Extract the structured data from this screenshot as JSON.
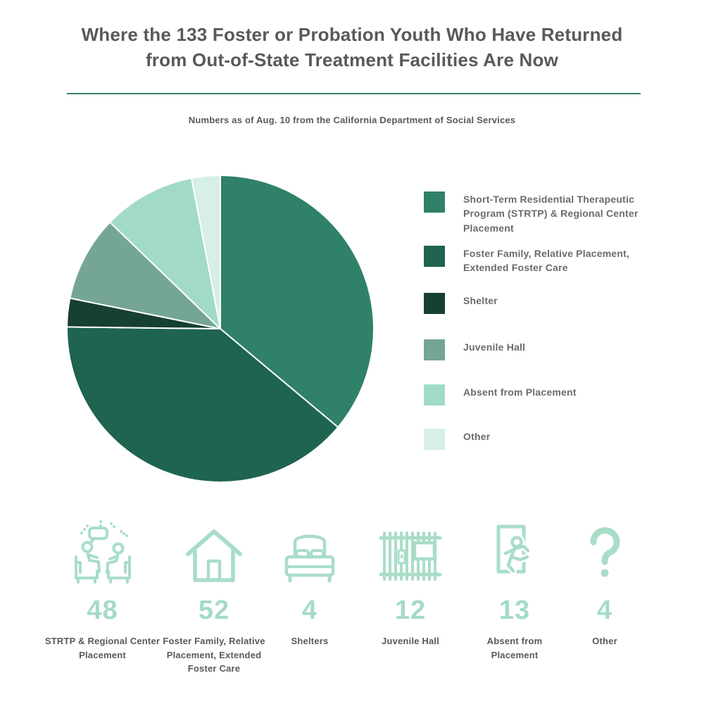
{
  "header": {
    "title": "Where the 133 Foster or Probation Youth Who Have Returned from Out-of-State Treatment Facilities Are Now",
    "subtitle": "Numbers as of Aug. 10 from the California Department of Social Services"
  },
  "chart_data": {
    "type": "pie",
    "title": "Where the 133 Foster or Probation Youth Who Have Returned from Out-of-State Treatment Facilities Are Now",
    "categories": [
      "Short-Term Residential Therapeutic Program (STRTP) & Regional Center Placement",
      "Foster Family, Relative Placement, Extended Foster Care",
      "Shelter",
      "Juvenile Hall",
      "Absent from Placement",
      "Other"
    ],
    "values": [
      48,
      52,
      4,
      12,
      13,
      4
    ],
    "total": 133,
    "colors": [
      "#2f8169",
      "#1f6351",
      "#16402f",
      "#75a597",
      "#a1dbc7",
      "#d7efe6"
    ],
    "start_angle_deg": 0,
    "direction": "clockwise",
    "legend_position": "right",
    "grid": false
  },
  "legend": {
    "items": [
      {
        "label": "Short-Term Residential Therapeutic Program (STRTP) & Regional Center Placement",
        "color": "#2f8169"
      },
      {
        "label": "Foster Family, Relative Placement, Extended Foster Care",
        "color": "#1f6351"
      },
      {
        "label": "Shelter",
        "color": "#16402f"
      },
      {
        "label": "Juvenile Hall",
        "color": "#75a597"
      },
      {
        "label": "Absent from Placement",
        "color": "#a1dbc7"
      },
      {
        "label": "Other",
        "color": "#d7efe6"
      }
    ]
  },
  "stats": {
    "items": [
      {
        "icon": "counseling-session-icon",
        "value": "48",
        "label": "STRTP & Regional Center Placement"
      },
      {
        "icon": "house-icon",
        "value": "52",
        "label": "Foster Family, Relative Placement, Extended Foster Care"
      },
      {
        "icon": "bed-icon",
        "value": "4",
        "label": "Shelters"
      },
      {
        "icon": "jail-bars-icon",
        "value": "12",
        "label": "Juvenile Hall"
      },
      {
        "icon": "person-exiting-door-icon",
        "value": "13",
        "label": "Absent from Placement"
      },
      {
        "icon": "question-mark-icon",
        "value": "4",
        "label": "Other"
      }
    ]
  },
  "theme": {
    "icon_mint": "#a9ddc8",
    "number_mint": "#a5dbc5",
    "text_dark": "#58595b",
    "text_medium": "#6a6b6d",
    "divider_green": "#3a806c",
    "background": "#ffffff"
  }
}
